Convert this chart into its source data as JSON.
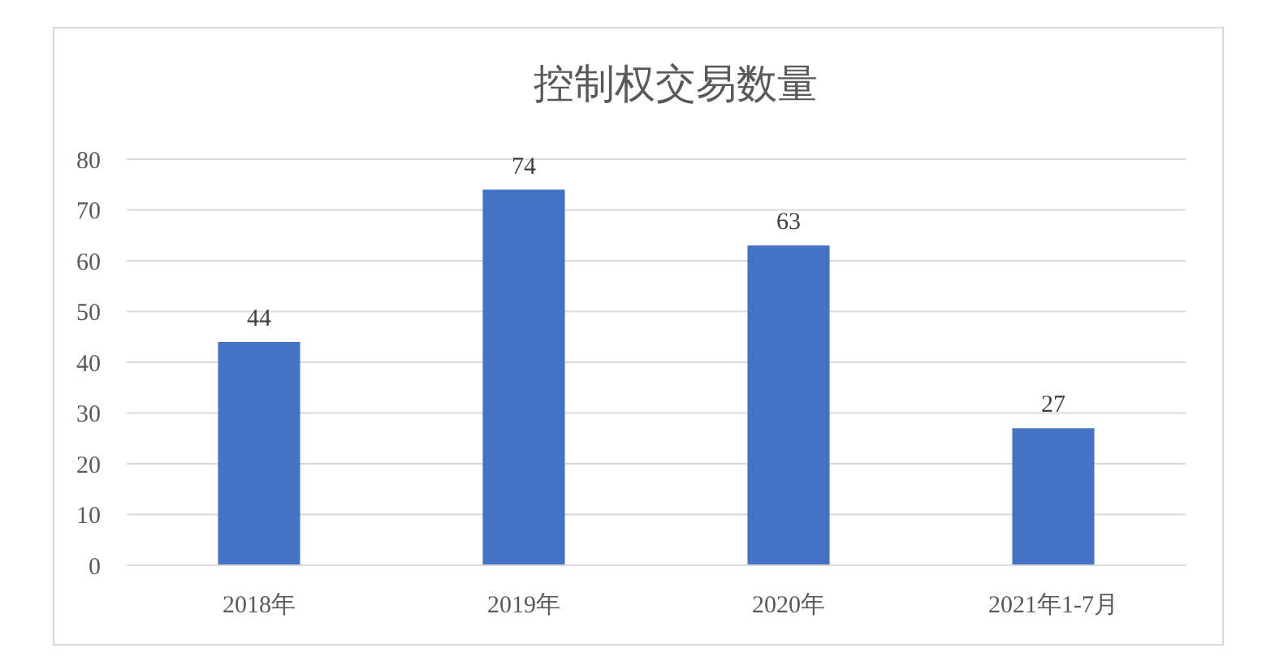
{
  "chart_data": {
    "type": "bar",
    "title": "控制权交易数量",
    "categories": [
      "2018年",
      "2019年",
      "2020年",
      "2021年1-7月"
    ],
    "values": [
      44,
      74,
      63,
      27
    ],
    "color": "#4472c4",
    "ylim": [
      0,
      80
    ],
    "yticks": [
      0,
      10,
      20,
      30,
      40,
      50,
      60,
      70,
      80
    ],
    "grid": "y",
    "data_labels": true
  }
}
